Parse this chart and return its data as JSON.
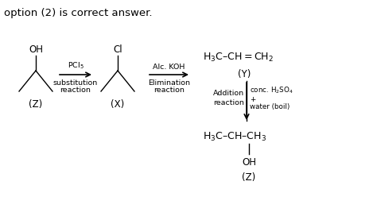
{
  "bg_color": "#ffffff",
  "text_color": "#000000",
  "figsize": [
    4.74,
    2.72
  ],
  "dpi": 100,
  "header": "option (2) is correct answer.",
  "header_fs": 9.5,
  "mol_fs": 8.5,
  "label_fs": 7.5,
  "small_fs": 6.8,
  "arrow1_top": "PCl$_5$",
  "arrow1_bot1": "substitution",
  "arrow1_bot2": "reaction",
  "arrow2_top": "Alc. KOH",
  "arrow2_bot1": "Elimination",
  "arrow2_bot2": "reaction",
  "Y_formula": "H$_3$C–CH = CH$_2$",
  "Y_label": "(Y)",
  "add_left1": "Addition",
  "add_left2": "reaction",
  "add_right1": "conc. H$_2$SO$_4$",
  "add_right2": "+",
  "add_right3": "water (boil)",
  "Z2_formula": "H$_3$C–CH–CH$_3$",
  "Z2_OH": "OH",
  "Z2_label": "(Z)"
}
